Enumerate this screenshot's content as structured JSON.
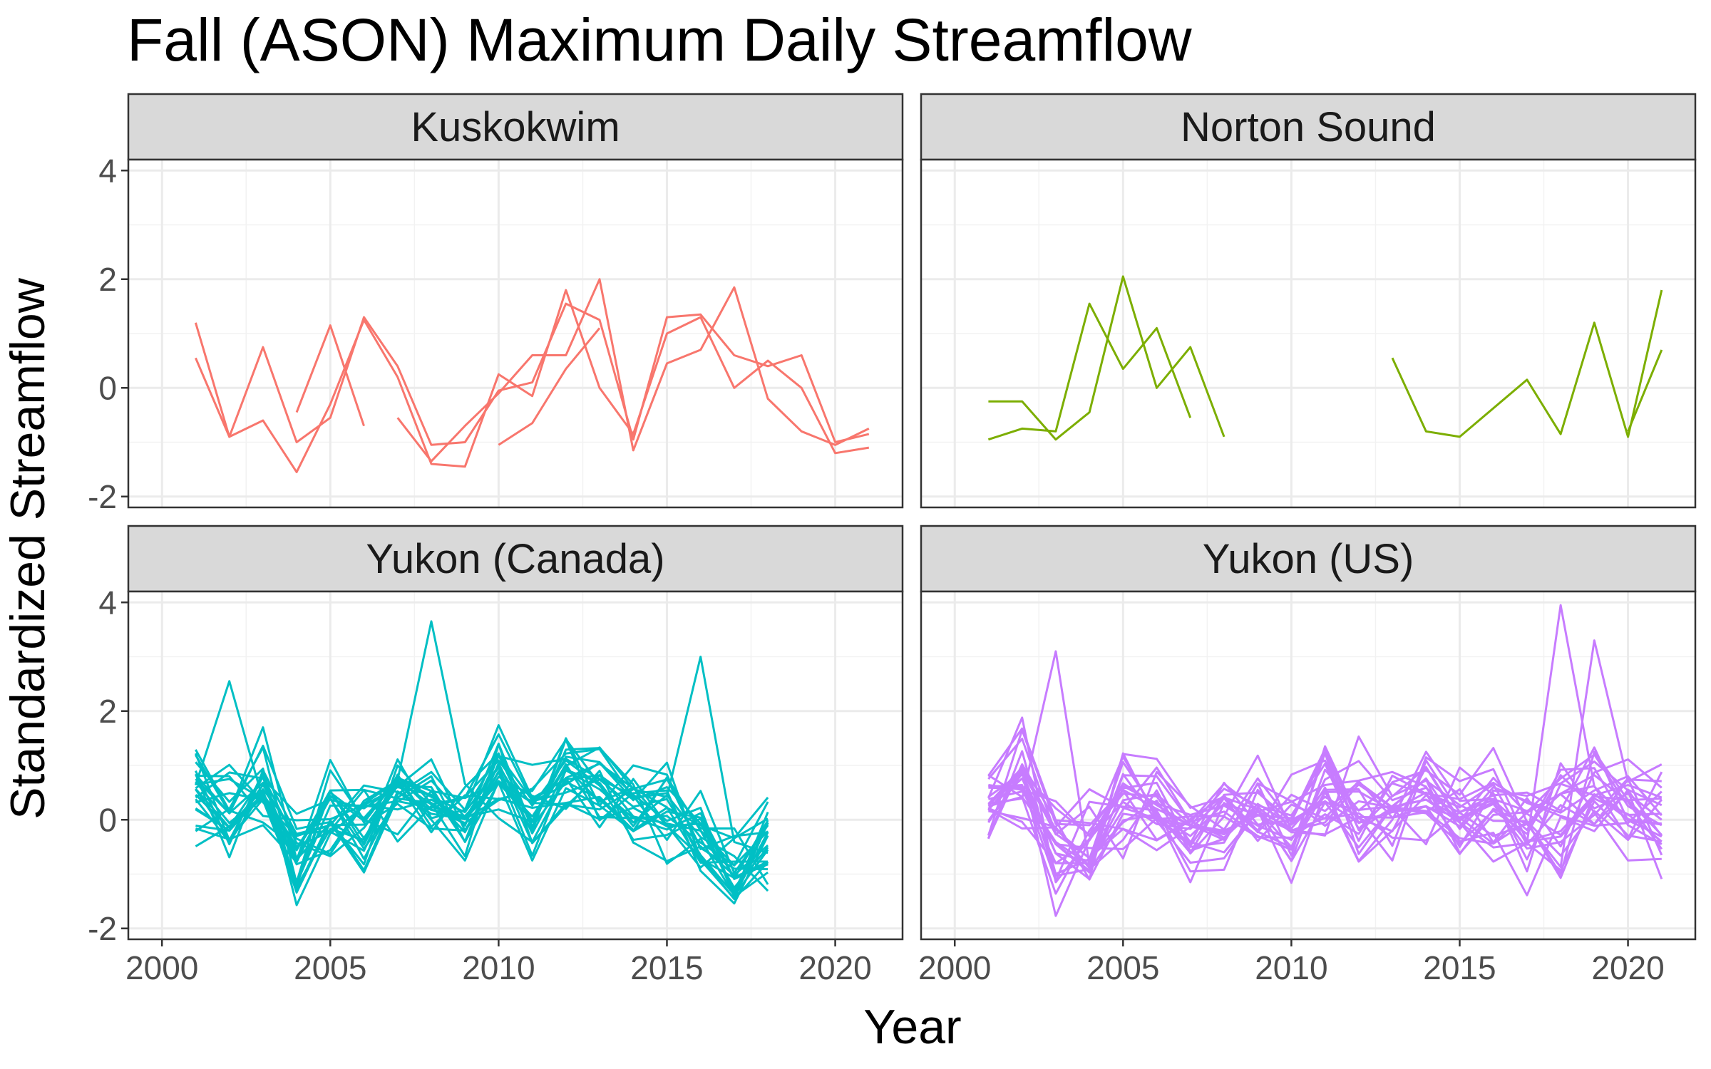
{
  "title": "Fall (ASON) Maximum Daily Streamflow",
  "chart_data": {
    "type": "line",
    "title": "Fall (ASON) Maximum Daily Streamflow",
    "xlabel": "Year",
    "ylabel": "Standardized Streamflow",
    "xlim": [
      1999,
      2022
    ],
    "ylim": [
      -2.2,
      4.2
    ],
    "x_ticks": [
      "2000",
      "2005",
      "2010",
      "2015",
      "2020"
    ],
    "y_ticks": [
      "-2",
      "0",
      "2",
      "4"
    ],
    "grid": true,
    "facets": [
      {
        "name": "Kuskokwim",
        "color": "#F8766D",
        "series": [
          {
            "x": [
              2001,
              2002,
              2003,
              2004,
              2005,
              2006,
              2007,
              2008,
              2009,
              2010,
              2011,
              2012,
              2013,
              2014,
              2015,
              2016,
              2017,
              2018,
              2019,
              2020,
              2021
            ],
            "y": [
              1.2,
              -0.9,
              0.75,
              -1.0,
              -0.55,
              1.3,
              0.4,
              -1.05,
              -1.0,
              -0.05,
              0.1,
              1.55,
              1.25,
              -0.95,
              1.3,
              1.35,
              0.6,
              0.4,
              0.6,
              -1.0,
              -0.85
            ]
          },
          {
            "x": [
              2001,
              2002,
              2003,
              2004,
              2005,
              2006,
              2007,
              2008,
              2009,
              2010,
              2011,
              2012,
              2013,
              2014,
              2015,
              2016,
              2017,
              2018,
              2019,
              2020,
              2021
            ],
            "y": [
              0.55,
              -0.9,
              -0.6,
              -1.55,
              -0.3,
              1.25,
              0.2,
              -1.4,
              -1.45,
              0.25,
              -0.15,
              1.8,
              0.0,
              -0.85,
              1.0,
              1.3,
              0.0,
              0.5,
              0.0,
              -1.2,
              -1.1
            ]
          },
          {
            "x": [
              2004,
              2005,
              2006
            ],
            "y": [
              -0.45,
              1.15,
              -0.7
            ]
          },
          {
            "x": [
              2007,
              2008,
              2009,
              2010,
              2011,
              2012,
              2013,
              2014,
              2015,
              2016,
              2017,
              2018,
              2019,
              2020,
              2021
            ],
            "y": [
              -0.55,
              -1.35,
              -0.7,
              -0.1,
              0.6,
              0.6,
              2.0,
              -1.15,
              0.45,
              0.7,
              1.85,
              -0.2,
              -0.8,
              -1.05,
              -0.75
            ]
          },
          {
            "x": [
              2010,
              2011,
              2012,
              2013
            ],
            "y": [
              -1.05,
              -0.65,
              0.35,
              1.1
            ]
          }
        ]
      },
      {
        "name": "Norton Sound",
        "color": "#7CAE00",
        "series": [
          {
            "x": [
              2001,
              2002,
              2003,
              2004,
              2005,
              2006,
              2007,
              2008
            ],
            "y": [
              -0.95,
              -0.75,
              -0.8,
              1.55,
              0.35,
              1.1,
              -0.55,
              null
            ]
          },
          {
            "x": [
              2001,
              2002,
              2003,
              2004,
              2005,
              2006,
              2007,
              2008
            ],
            "y": [
              -0.25,
              -0.25,
              -0.95,
              -0.45,
              2.05,
              0.0,
              0.75,
              -0.9
            ]
          },
          {
            "x": [
              2013,
              2014,
              2015,
              2017,
              2018,
              2019,
              2020,
              2021
            ],
            "y": [
              0.55,
              -0.8,
              -0.9,
              0.15,
              -0.85,
              1.2,
              -0.9,
              1.8
            ]
          },
          {
            "x": [
              2020,
              2021
            ],
            "y": [
              -0.8,
              0.7
            ]
          }
        ]
      },
      {
        "name": "Yukon (Canada)",
        "color": "#00BFC4",
        "series_count": 25,
        "x_range": [
          2001,
          2018
        ],
        "peaks": [
          {
            "x": 2008,
            "y": 3.65
          },
          {
            "x": 2016,
            "y": 3.0
          },
          {
            "x": 2002,
            "y": 2.55
          }
        ]
      },
      {
        "name": "Yukon (US)",
        "color": "#C77CFF",
        "series_count": 25,
        "x_range": [
          2001,
          2021
        ],
        "peaks": [
          {
            "x": 2018,
            "y": 3.95
          },
          {
            "x": 2019,
            "y": 3.3
          },
          {
            "x": 2003,
            "y": 3.1
          }
        ]
      }
    ]
  }
}
